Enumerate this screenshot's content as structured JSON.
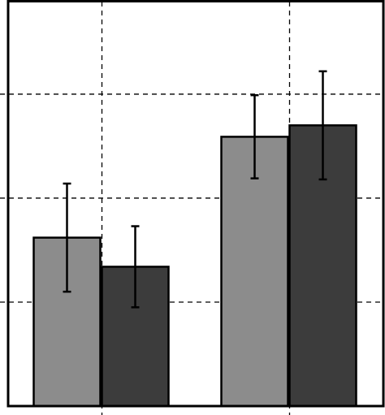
{
  "chart_data": {
    "type": "bar",
    "categories": [
      null,
      null
    ],
    "series": [
      {
        "color": "#8c8c8c",
        "values": [
          1.62,
          2.59
        ],
        "errors": [
          0.52,
          0.4
        ]
      },
      {
        "color": "#3c3c3c",
        "values": [
          1.34,
          2.7
        ],
        "errors": [
          0.39,
          0.52
        ]
      }
    ],
    "ylim": [
      0,
      3.89
    ],
    "yticks": [
      1,
      2,
      3
    ],
    "grid": true
  }
}
